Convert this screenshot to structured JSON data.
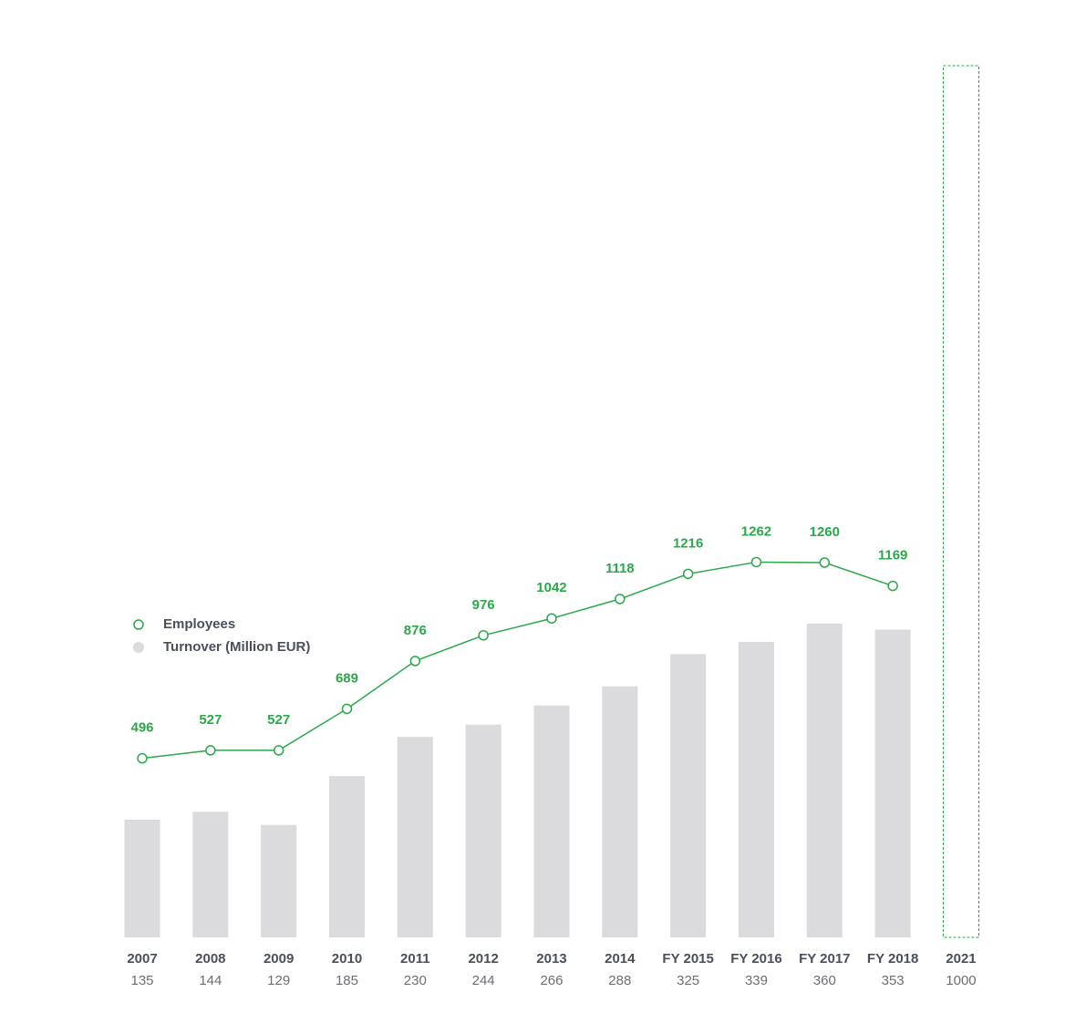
{
  "chart_data": {
    "type": "bar-line",
    "categories": [
      "2007",
      "2008",
      "2009",
      "2010",
      "2011",
      "2012",
      "2013",
      "2014",
      "FY 2015",
      "FY 2016",
      "FY 2017",
      "FY 2018",
      "2021"
    ],
    "series": [
      {
        "name": "Turnover (Million EUR)",
        "type": "bar",
        "color": "#dbdbdd",
        "outline_color": "#2aa84a",
        "dashed": [
          12
        ],
        "values": [
          135,
          144,
          129,
          185,
          230,
          244,
          266,
          288,
          325,
          339,
          360,
          353,
          1000
        ]
      },
      {
        "name": "Employees",
        "type": "line",
        "axis": "y2",
        "color": "#2aa84a",
        "values": [
          496,
          527,
          527,
          689,
          876,
          976,
          1042,
          1118,
          1216,
          1262,
          1260,
          1169,
          null
        ]
      }
    ],
    "ylim": [
      0,
      1000
    ],
    "y2lim": [
      -203,
      3200
    ],
    "legend": "left"
  }
}
